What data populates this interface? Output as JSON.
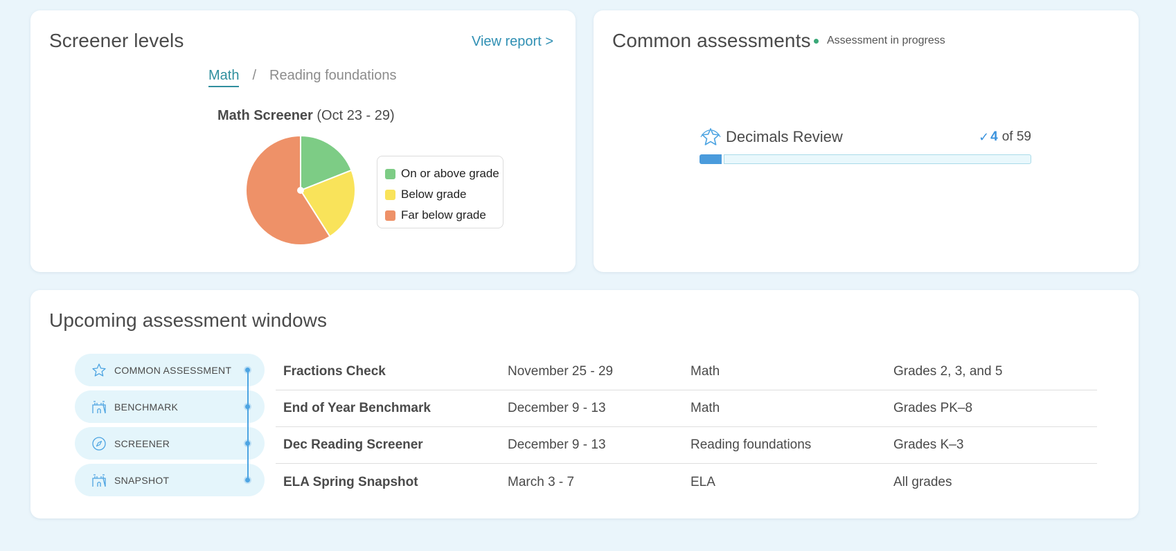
{
  "screener": {
    "title": "Screener levels",
    "view_report": "View report >",
    "tabs": [
      {
        "label": "Math",
        "active": true
      },
      {
        "label": "Reading foundations",
        "active": false
      }
    ],
    "tab_separator": "/",
    "chart_title_bold": "Math Screener",
    "chart_title_rest": " (Oct 23 - 29)"
  },
  "chart_data": {
    "type": "pie",
    "title": "Math Screener (Oct 23 - 29)",
    "slices": [
      {
        "label": "On or above grade",
        "value": 19,
        "color": "#7dcc85"
      },
      {
        "label": "Below grade",
        "value": 22,
        "color": "#f9e35a"
      },
      {
        "label": "Far below grade",
        "value": 59,
        "color": "#ee9168"
      }
    ],
    "legend_position": "right"
  },
  "common": {
    "title": "Common assessments",
    "badge": "Assessment in progress",
    "assessment": {
      "name": "Decimals Review",
      "completed": "4",
      "of_total": "of 59",
      "progress_fraction": 0.0678
    }
  },
  "upcoming": {
    "title": "Upcoming assessment windows",
    "types": [
      {
        "label": "COMMON ASSESSMENT",
        "icon": "star-badge-icon"
      },
      {
        "label": "BENCHMARK",
        "icon": "castle-icon"
      },
      {
        "label": "SCREENER",
        "icon": "compass-icon"
      },
      {
        "label": "SNAPSHOT",
        "icon": "castle-icon"
      }
    ],
    "rows": [
      {
        "name": "Fractions Check",
        "dates": "November 25 - 29",
        "subject": "Math",
        "grades": "Grades 2, 3, and 5"
      },
      {
        "name": "End of Year Benchmark",
        "dates": "December 9 - 13",
        "subject": "Math",
        "grades": "Grades PK–8"
      },
      {
        "name": "Dec Reading Screener",
        "dates": "December 9 - 13",
        "subject": "Reading foundations",
        "grades": "Grades K–3"
      },
      {
        "name": "ELA Spring Snapshot",
        "dates": "March 3 - 7",
        "subject": "ELA",
        "grades": "All grades"
      }
    ]
  }
}
